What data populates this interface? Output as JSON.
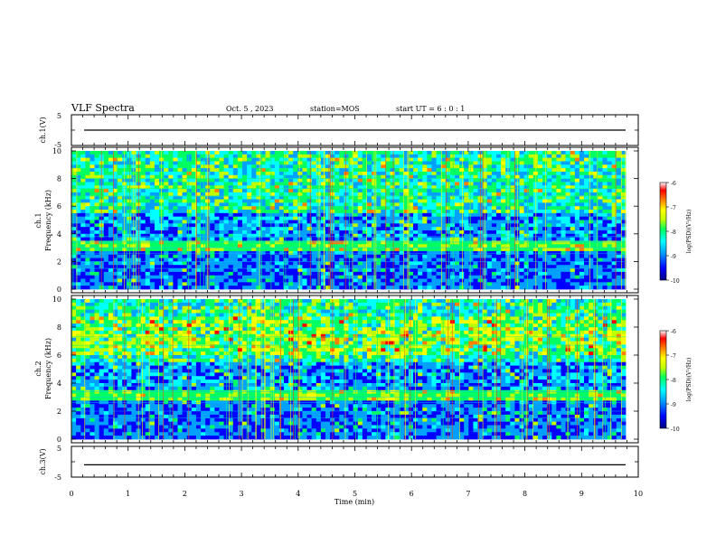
{
  "header": {
    "title": "VLF Spectra",
    "date": "Oct. 5 , 2023",
    "station": "station=MOS",
    "start": "start UT = 6 : 0 : 1"
  },
  "colors": {
    "colormap": [
      "#000080",
      "#0000ff",
      "#00a0ff",
      "#00ffff",
      "#00ff60",
      "#c0ff00",
      "#ffff00",
      "#ff8000",
      "#ff0000",
      "#ffffff"
    ],
    "trace": "#000000",
    "axes": "#000000"
  },
  "chart_data": [
    {
      "type": "line",
      "name": "ch1-voltage",
      "ylabel": "ch.1(V)",
      "ylim": [
        -5,
        5
      ],
      "yticks": [
        "5",
        "-5"
      ],
      "x": [
        0,
        10
      ],
      "y": [
        0,
        0
      ],
      "xlim": [
        0,
        10
      ]
    },
    {
      "type": "heatmap",
      "name": "ch1-spectrogram",
      "ylabel": "ch.1\nFrequency (kHz)",
      "ylim": [
        0,
        10
      ],
      "yticks": [
        "0",
        "2",
        "4",
        "6",
        "8",
        "10"
      ],
      "xlim": [
        0,
        10
      ],
      "colorbar": {
        "label": "log(PSD)(V²/Hz)",
        "range": [
          -10,
          -6
        ],
        "ticks": [
          "-6",
          "-7",
          "-8",
          "-9",
          "-10"
        ]
      }
    },
    {
      "type": "heatmap",
      "name": "ch2-spectrogram",
      "ylabel": "ch.2\nFrequency (kHz)",
      "ylim": [
        0,
        10
      ],
      "yticks": [
        "0",
        "2",
        "4",
        "6",
        "8",
        "10"
      ],
      "xlim": [
        0,
        10
      ],
      "colorbar": {
        "label": "log(PSD)(V²/Hz)",
        "range": [
          -10,
          -6
        ],
        "ticks": [
          "-6",
          "-7",
          "-8",
          "-9",
          "-10"
        ]
      }
    },
    {
      "type": "line",
      "name": "ch3-voltage",
      "ylabel": "ch.3(V)",
      "ylim": [
        -5,
        5
      ],
      "yticks": [
        "5",
        "-5"
      ],
      "x": [
        0,
        10
      ],
      "y": [
        -1,
        -1
      ],
      "xlim": [
        0,
        10
      ],
      "xlabel": "Time (min)",
      "xticks": [
        "0",
        "1",
        "2",
        "3",
        "4",
        "5",
        "6",
        "7",
        "8",
        "9",
        "10"
      ]
    }
  ]
}
